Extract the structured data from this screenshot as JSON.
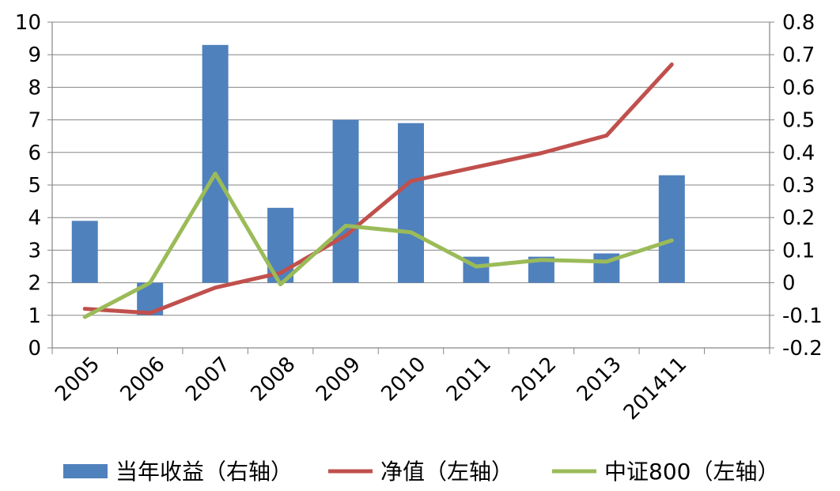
{
  "chart_data": {
    "type": "bar",
    "categories": [
      "2005",
      "2006",
      "2007",
      "2008",
      "2009",
      "2010",
      "2011",
      "2012",
      "2013",
      "201411"
    ],
    "y_left": {
      "range": [
        0,
        10
      ],
      "ticks": [
        "0",
        "1",
        "2",
        "3",
        "4",
        "5",
        "6",
        "7",
        "8",
        "9",
        "10"
      ]
    },
    "y_right": {
      "range": [
        -0.2,
        0.8
      ],
      "ticks": [
        "-0.2",
        "-0.1",
        "0",
        "0.1",
        "0.2",
        "0.3",
        "0.4",
        "0.5",
        "0.6",
        "0.7",
        "0.8"
      ]
    },
    "grid": true,
    "legend_position": "bottom",
    "series": [
      {
        "name": "当年收益（右轴）",
        "type": "bar",
        "axis": "right",
        "color": "#4F81BD",
        "values": [
          0.19,
          -0.1,
          0.73,
          0.23,
          0.5,
          0.49,
          0.08,
          0.08,
          0.09,
          0.33
        ]
      },
      {
        "name": "净值（左轴）",
        "type": "line",
        "axis": "left",
        "color": "#C0504D",
        "values": [
          1.2,
          1.07,
          1.85,
          2.3,
          3.45,
          5.12,
          5.55,
          5.98,
          6.52,
          8.7
        ]
      },
      {
        "name": "中证800（左轴）",
        "type": "line",
        "axis": "left",
        "color": "#9BBB59",
        "values": [
          0.95,
          2.0,
          5.35,
          1.95,
          3.75,
          3.55,
          2.5,
          2.7,
          2.65,
          3.3
        ]
      }
    ]
  }
}
